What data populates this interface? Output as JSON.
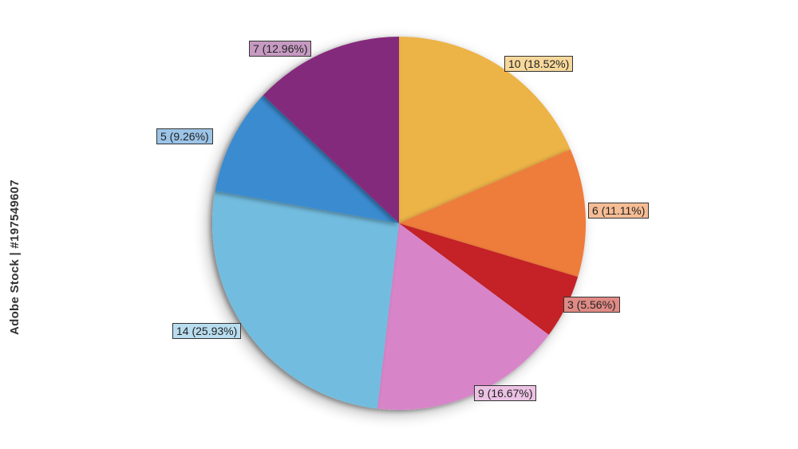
{
  "chart_data": {
    "type": "pie",
    "title": "",
    "start_angle_deg": 0,
    "direction": "clockwise",
    "slices": [
      {
        "value": 10,
        "label": "10 (18.52%)",
        "color": "#ecb346",
        "label_bg": "#f7d89b"
      },
      {
        "value": 6,
        "label": "6 (11.11%)",
        "color": "#ee7b3a",
        "label_bg": "#f6bd95"
      },
      {
        "value": 3,
        "label": "3 (5.56%)",
        "color": "#c42026",
        "label_bg": "#e08a85"
      },
      {
        "value": 9,
        "label": "9 (16.67%)",
        "color": "#d884c8",
        "label_bg": "#ecc2e4"
      },
      {
        "value": 14,
        "label": "14 (25.93%)",
        "color": "#72bcdf",
        "label_bg": "#b8ddef"
      },
      {
        "value": 5,
        "label": "5 (9.26%)",
        "color": "#3a8bd0",
        "label_bg": "#9cc4e8"
      },
      {
        "value": 7,
        "label": "7 (12.96%)",
        "color": "#84297b",
        "label_bg": "#c79ac2"
      }
    ]
  },
  "watermark": {
    "text": "Adobe Stock | #197549607"
  }
}
